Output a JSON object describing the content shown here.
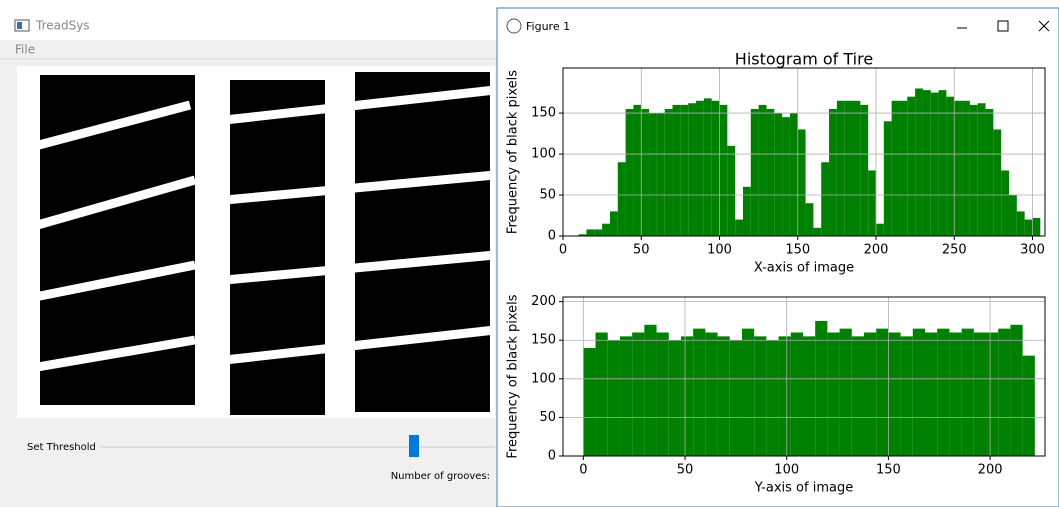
{
  "app": {
    "title": "TreadSys",
    "menu": "File",
    "threshold_label": "Set Threshold",
    "grooves_label": "Number of grooves:"
  },
  "figure_window": {
    "title": "Figure 1"
  },
  "chart_data": [
    {
      "type": "histogram",
      "title": "Histogram of Tire",
      "x_label": "X-axis of image",
      "y_label": "Frequency of black pixels",
      "color": "#008000",
      "grid": true,
      "bins": [
        10,
        15,
        20,
        25,
        30,
        35,
        40,
        45,
        50,
        55,
        60,
        65,
        70,
        75,
        80,
        85,
        90,
        95,
        100,
        105,
        110,
        115,
        120,
        125,
        130,
        135,
        140,
        145,
        150,
        155,
        160,
        165,
        170,
        175,
        180,
        185,
        190,
        195,
        200,
        205,
        210,
        215,
        220,
        225,
        230,
        235,
        240,
        245,
        250,
        255,
        260,
        265,
        270,
        275,
        280,
        285,
        290,
        295,
        300,
        305
      ],
      "values": [
        2,
        8,
        8,
        15,
        30,
        90,
        155,
        160,
        155,
        150,
        150,
        155,
        160,
        160,
        162,
        165,
        168,
        165,
        160,
        110,
        20,
        60,
        155,
        160,
        155,
        150,
        145,
        150,
        130,
        40,
        10,
        90,
        155,
        165,
        165,
        165,
        160,
        80,
        15,
        140,
        165,
        165,
        170,
        180,
        178,
        175,
        178,
        170,
        165,
        165,
        160,
        162,
        155,
        130,
        80,
        50,
        30,
        20,
        22
      ],
      "xlim": [
        0,
        308
      ],
      "ylim": [
        0,
        205
      ],
      "xticks": [
        0,
        50,
        100,
        150,
        200,
        250,
        300
      ],
      "yticks": [
        0,
        50,
        100,
        150
      ]
    },
    {
      "type": "histogram",
      "x_label": "Y-axis of image",
      "y_label": "Frequency of black pixels",
      "color": "#008000",
      "grid": true,
      "bins": [
        0,
        6,
        12,
        18,
        24,
        30,
        36,
        42,
        48,
        54,
        60,
        66,
        72,
        78,
        84,
        90,
        96,
        102,
        108,
        114,
        120,
        126,
        132,
        138,
        144,
        150,
        156,
        162,
        168,
        174,
        180,
        186,
        192,
        198,
        204,
        210,
        216,
        222
      ],
      "values": [
        140,
        160,
        150,
        155,
        160,
        170,
        160,
        150,
        155,
        165,
        160,
        155,
        150,
        165,
        155,
        150,
        155,
        160,
        155,
        175,
        160,
        165,
        155,
        160,
        165,
        160,
        155,
        165,
        160,
        165,
        160,
        165,
        160,
        160,
        165,
        170,
        130
      ],
      "xlim": [
        -10,
        227
      ],
      "ylim": [
        0,
        206
      ],
      "xticks": [
        0,
        50,
        100,
        150,
        200
      ],
      "yticks": [
        0,
        50,
        100,
        150,
        200
      ]
    }
  ]
}
